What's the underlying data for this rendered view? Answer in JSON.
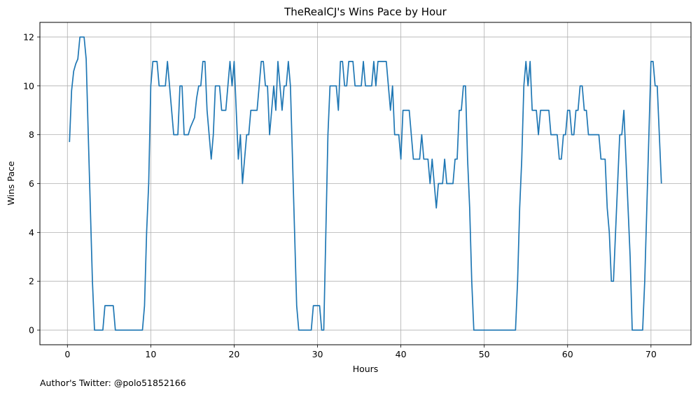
{
  "footer_text": "Author's Twitter: @polo51852166",
  "chart_data": {
    "type": "line",
    "title": "TheRealCJ's Wins Pace by Hour",
    "xlabel": "Hours",
    "ylabel": "Wins Pace",
    "xlim": [
      -3.3,
      74.8
    ],
    "ylim": [
      -0.6,
      12.6
    ],
    "xticks": [
      0,
      10,
      20,
      30,
      40,
      50,
      60,
      70
    ],
    "yticks": [
      0,
      2,
      4,
      6,
      8,
      10,
      12
    ],
    "grid": true,
    "color": "#1f77b4",
    "series": [
      {
        "x": [
          0.25,
          0.5,
          0.75,
          1.0,
          1.25,
          1.5,
          1.75,
          2.0,
          2.25,
          2.5,
          2.75,
          3.0,
          3.25,
          3.5,
          3.75,
          4.0,
          4.25,
          4.5,
          4.75,
          5.0,
          5.25,
          5.5,
          5.75,
          6.0,
          6.5,
          7.0,
          7.5,
          8.0,
          8.5,
          8.75,
          9.0,
          9.25,
          9.5,
          9.75,
          10.0,
          10.25,
          10.5,
          10.75,
          11.0,
          11.25,
          11.5,
          11.75,
          12.0,
          12.25,
          12.5,
          12.75,
          13.0,
          13.25,
          13.5,
          13.75,
          14.0,
          14.25,
          14.5,
          14.75,
          15.0,
          15.25,
          15.5,
          15.75,
          16.0,
          16.25,
          16.5,
          16.75,
          17.0,
          17.25,
          17.5,
          17.75,
          18.0,
          18.25,
          18.5,
          18.75,
          19.0,
          19.25,
          19.5,
          19.75,
          20.0,
          20.25,
          20.5,
          20.75,
          21.0,
          21.25,
          21.5,
          21.75,
          22.0,
          22.25,
          22.5,
          22.75,
          23.0,
          23.25,
          23.5,
          23.75,
          24.0,
          24.25,
          24.5,
          24.75,
          25.0,
          25.25,
          25.5,
          25.75,
          26.0,
          26.25,
          26.5,
          26.75,
          27.0,
          27.25,
          27.5,
          27.75,
          28.0,
          28.5,
          29.0,
          29.25,
          29.5,
          29.75,
          30.0,
          30.25,
          30.5,
          30.75,
          31.0,
          31.25,
          31.5,
          31.75,
          32.0,
          32.25,
          32.5,
          32.75,
          33.0,
          33.25,
          33.5,
          33.75,
          34.0,
          34.25,
          34.5,
          34.75,
          35.0,
          35.25,
          35.5,
          35.75,
          36.0,
          36.25,
          36.5,
          36.75,
          37.0,
          37.25,
          37.5,
          37.75,
          38.0,
          38.25,
          38.5,
          38.75,
          39.0,
          39.25,
          39.5,
          39.75,
          40.0,
          40.25,
          40.5,
          40.75,
          41.0,
          41.25,
          41.5,
          41.75,
          42.0,
          42.25,
          42.5,
          42.75,
          43.0,
          43.25,
          43.5,
          43.75,
          44.0,
          44.25,
          44.5,
          44.75,
          45.0,
          45.25,
          45.5,
          45.75,
          46.0,
          46.25,
          46.5,
          46.75,
          47.0,
          47.25,
          47.5,
          47.75,
          48.0,
          48.25,
          48.5,
          48.75,
          49.0,
          50.0,
          51.0,
          52.0,
          53.0,
          53.75,
          54.0,
          54.25,
          54.5,
          54.75,
          55.0,
          55.25,
          55.5,
          55.75,
          56.0,
          56.25,
          56.5,
          56.75,
          57.0,
          57.25,
          57.5,
          57.75,
          58.0,
          58.25,
          58.5,
          58.75,
          59.0,
          59.25,
          59.5,
          59.75,
          60.0,
          60.25,
          60.5,
          60.75,
          61.0,
          61.25,
          61.5,
          61.75,
          62.0,
          62.25,
          62.5,
          62.75,
          63.0,
          63.25,
          63.5,
          63.75,
          64.0,
          64.25,
          64.5,
          64.75,
          65.0,
          65.25,
          65.5,
          65.75,
          66.0,
          66.25,
          66.5,
          66.75,
          67.0,
          67.25,
          67.5,
          67.75,
          68.0,
          68.5,
          69.0,
          69.25,
          69.5,
          69.75,
          70.0,
          70.25,
          70.5,
          70.75,
          71.0,
          71.25
        ],
        "y": [
          7.7,
          9.8,
          10.6,
          10.9,
          11.1,
          12.0,
          12.0,
          12.0,
          11.1,
          8.0,
          5.0,
          2.0,
          0.0,
          0.0,
          0.0,
          0.0,
          0.0,
          1.0,
          1.0,
          1.0,
          1.0,
          1.0,
          0.0,
          0.0,
          0.0,
          0.0,
          0.0,
          0.0,
          0.0,
          0.0,
          0.0,
          1.0,
          4.0,
          6.0,
          10.0,
          11.0,
          11.0,
          11.0,
          10.0,
          10.0,
          10.0,
          10.0,
          11.0,
          10.0,
          9.0,
          8.0,
          8.0,
          8.0,
          10.0,
          10.0,
          8.0,
          8.0,
          8.0,
          8.3,
          8.5,
          8.7,
          9.5,
          10.0,
          10.0,
          11.0,
          11.0,
          9.0,
          8.0,
          7.0,
          8.0,
          10.0,
          10.0,
          10.0,
          9.0,
          9.0,
          9.0,
          10.0,
          11.0,
          10.0,
          11.0,
          9.0,
          7.0,
          8.0,
          6.0,
          7.0,
          8.0,
          8.0,
          9.0,
          9.0,
          9.0,
          9.0,
          10.0,
          11.0,
          11.0,
          10.0,
          10.0,
          8.0,
          9.0,
          10.0,
          9.0,
          11.0,
          10.0,
          9.0,
          10.0,
          10.0,
          11.0,
          10.0,
          7.0,
          4.0,
          1.0,
          0.0,
          0.0,
          0.0,
          0.0,
          0.0,
          1.0,
          1.0,
          1.0,
          1.0,
          0.0,
          0.0,
          4.0,
          8.0,
          10.0,
          10.0,
          10.0,
          10.0,
          9.0,
          11.0,
          11.0,
          10.0,
          10.0,
          11.0,
          11.0,
          11.0,
          10.0,
          10.0,
          10.0,
          10.0,
          11.0,
          10.0,
          10.0,
          10.0,
          10.0,
          11.0,
          10.0,
          11.0,
          11.0,
          11.0,
          11.0,
          11.0,
          10.0,
          9.0,
          10.0,
          8.0,
          8.0,
          8.0,
          7.0,
          9.0,
          9.0,
          9.0,
          9.0,
          8.0,
          7.0,
          7.0,
          7.0,
          7.0,
          8.0,
          7.0,
          7.0,
          7.0,
          6.0,
          7.0,
          6.0,
          5.0,
          6.0,
          6.0,
          6.0,
          7.0,
          6.0,
          6.0,
          6.0,
          6.0,
          7.0,
          7.0,
          9.0,
          9.0,
          10.0,
          10.0,
          7.0,
          5.0,
          2.0,
          0.0,
          0.0,
          0.0,
          0.0,
          0.0,
          0.0,
          0.0,
          2.0,
          5.0,
          7.0,
          10.0,
          11.0,
          10.0,
          11.0,
          9.0,
          9.0,
          9.0,
          8.0,
          9.0,
          9.0,
          9.0,
          9.0,
          9.0,
          8.0,
          8.0,
          8.0,
          8.0,
          7.0,
          7.0,
          8.0,
          8.0,
          9.0,
          9.0,
          8.0,
          8.0,
          9.0,
          9.0,
          10.0,
          10.0,
          9.0,
          9.0,
          8.0,
          8.0,
          8.0,
          8.0,
          8.0,
          8.0,
          7.0,
          7.0,
          7.0,
          5.0,
          4.0,
          2.0,
          2.0,
          4.0,
          6.0,
          8.0,
          8.0,
          9.0,
          7.0,
          5.0,
          3.0,
          0.0,
          0.0,
          0.0,
          0.0,
          2.0,
          5.0,
          8.0,
          11.0,
          11.0,
          10.0,
          10.0,
          8.0,
          6.0
        ]
      }
    ]
  }
}
